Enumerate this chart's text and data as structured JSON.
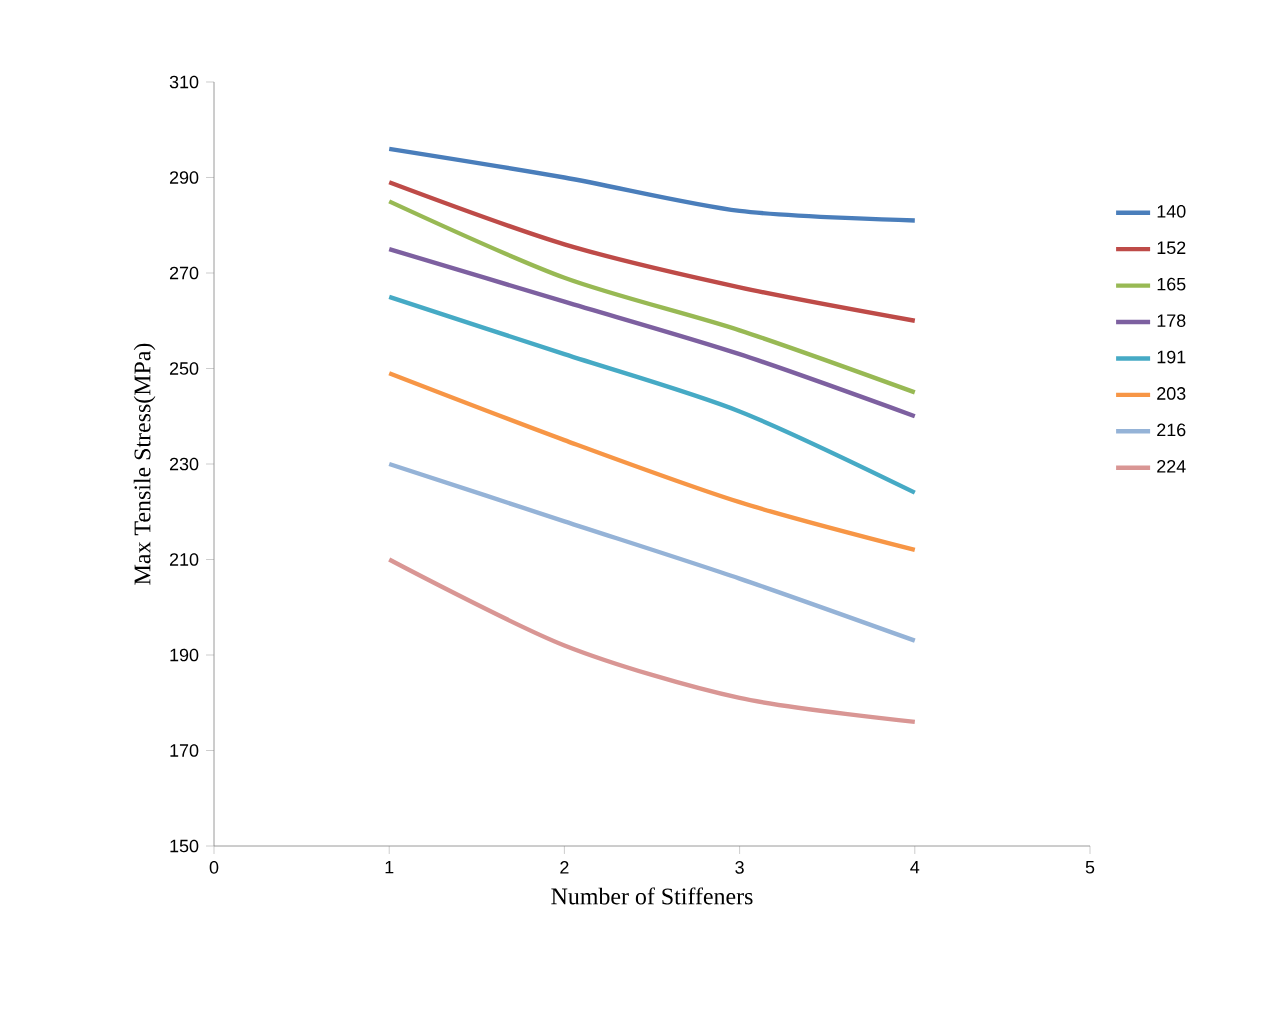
{
  "chart_data": {
    "type": "line",
    "xlabel": "Number of Stiffeners",
    "ylabel": "Max Tensile Stress(MPa)",
    "x": [
      1,
      2,
      3,
      4
    ],
    "xlim": [
      0,
      5
    ],
    "xticks": [
      0,
      1,
      2,
      3,
      4,
      5
    ],
    "ylim": [
      150,
      310
    ],
    "yticks": [
      150,
      170,
      190,
      210,
      230,
      250,
      270,
      290,
      310
    ],
    "grid": false,
    "legend": "right",
    "line_style": "solid",
    "series": [
      {
        "name": "140",
        "color": "#4a7ebb",
        "values": [
          296,
          290,
          283,
          281
        ]
      },
      {
        "name": "152",
        "color": "#be4b48",
        "values": [
          289,
          276,
          267,
          260
        ]
      },
      {
        "name": "165",
        "color": "#98b954",
        "values": [
          285,
          269,
          258,
          245
        ]
      },
      {
        "name": "178",
        "color": "#7d60a0",
        "values": [
          275,
          264,
          253,
          240
        ]
      },
      {
        "name": "191",
        "color": "#46aac5",
        "values": [
          265,
          253,
          241,
          224
        ]
      },
      {
        "name": "203",
        "color": "#f79646",
        "values": [
          249,
          235,
          222,
          212
        ]
      },
      {
        "name": "216",
        "color": "#95b3d7",
        "values": [
          230,
          218,
          206,
          193
        ]
      },
      {
        "name": "224",
        "color": "#d99694",
        "values": [
          210,
          192,
          181,
          176
        ]
      }
    ]
  }
}
